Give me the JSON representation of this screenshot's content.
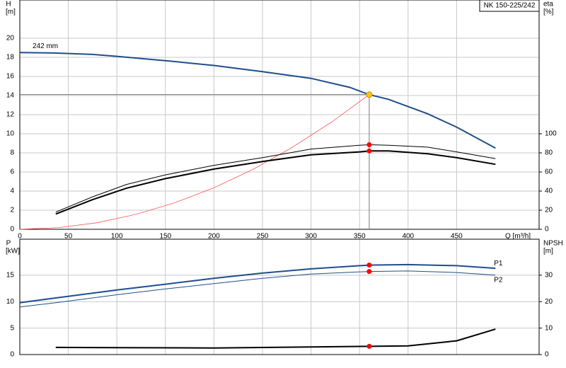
{
  "chart_data": [
    {
      "type": "line",
      "title": "NK 150-225/242",
      "ylabel": [
        "H",
        "[m]"
      ],
      "y2label": [
        "eta",
        "[%]"
      ],
      "xlabel": "Q [m³/h]",
      "xlim": [
        0,
        535
      ],
      "xticks": [
        0,
        50,
        100,
        150,
        200,
        250,
        300,
        350,
        400,
        450
      ],
      "show_xtick_labels": true,
      "ylim": [
        0,
        24
      ],
      "yticks": [
        0,
        2,
        4,
        6,
        8,
        10,
        12,
        14,
        16,
        18,
        20
      ],
      "y2lim": [
        0,
        240
      ],
      "y2ticks": [
        0,
        20,
        40,
        60,
        80,
        100
      ],
      "grid": true,
      "guides": true,
      "series_label_at": "start",
      "series": [
        {
          "name": "242 mm",
          "color": "#1f4e8c",
          "weight": "bold",
          "axis": "y",
          "x": [
            0,
            35,
            75,
            100,
            150,
            200,
            250,
            300,
            340,
            360,
            380,
            420,
            450,
            490
          ],
          "values": [
            18.5,
            18.45,
            18.3,
            18.1,
            17.65,
            17.15,
            16.5,
            15.8,
            14.85,
            14.1,
            13.6,
            12.1,
            10.7,
            8.5
          ]
        },
        {
          "color": "#ff3b3b",
          "weight": "hair",
          "axis": "y",
          "x": [
            0,
            40,
            80,
            120,
            160,
            200,
            240,
            280,
            320,
            360
          ],
          "values": [
            0,
            0.17,
            0.7,
            1.57,
            2.79,
            4.35,
            6.27,
            8.53,
            11.14,
            14.1
          ]
        },
        {
          "color": "#000000",
          "weight": "normal",
          "axis": "y2",
          "x": [
            37,
            75,
            110,
            150,
            200,
            250,
            300,
            350,
            360,
            380,
            420,
            450,
            490
          ],
          "values": [
            18,
            34,
            47,
            57,
            67,
            75,
            84,
            88,
            88.5,
            88,
            86,
            81,
            74
          ]
        },
        {
          "color": "#000000",
          "weight": "bold",
          "axis": "y2",
          "x": [
            37,
            75,
            110,
            150,
            200,
            250,
            300,
            350,
            360,
            380,
            420,
            450,
            490
          ],
          "values": [
            16,
            31,
            43,
            53,
            63,
            71,
            78,
            81,
            82,
            82,
            79,
            75,
            68
          ]
        }
      ],
      "markers": [
        {
          "x": 360,
          "y": 14.1,
          "axis": "y",
          "color": "#f5c518"
        },
        {
          "x": 360,
          "y": 88.5,
          "axis": "y2",
          "color": "#ff0000"
        },
        {
          "x": 360,
          "y": 82,
          "axis": "y2",
          "color": "#ff0000"
        }
      ]
    },
    {
      "type": "line",
      "ylabel": [
        "P",
        "[kW]"
      ],
      "y2label": [
        "NPSH",
        "[m]"
      ],
      "xlim": [
        0,
        535
      ],
      "xticks": [
        0,
        50,
        100,
        150,
        200,
        250,
        300,
        350,
        400,
        450
      ],
      "show_xtick_labels": false,
      "ylim": [
        0,
        21.8
      ],
      "yticks": [
        0,
        5,
        10,
        15
      ],
      "y2lim": [
        0,
        43.6
      ],
      "y2ticks": [
        0,
        10,
        20,
        30
      ],
      "grid": true,
      "guides": false,
      "series_label_at": "end",
      "series": [
        {
          "name": "P1",
          "color": "#1f4e8c",
          "weight": "bold",
          "axis": "y",
          "x": [
            0,
            37,
            100,
            150,
            200,
            250,
            300,
            360,
            400,
            450,
            490
          ],
          "values": [
            9.8,
            10.7,
            12.2,
            13.3,
            14.4,
            15.4,
            16.2,
            16.9,
            17.0,
            16.8,
            16.3
          ]
        },
        {
          "name": "P2",
          "color": "#1f4e8c",
          "weight": "normal",
          "axis": "y",
          "x": [
            0,
            37,
            100,
            150,
            200,
            250,
            300,
            360,
            400,
            450,
            490
          ],
          "values": [
            9.0,
            9.8,
            11.3,
            12.4,
            13.4,
            14.4,
            15.2,
            15.7,
            15.8,
            15.5,
            15.0
          ]
        },
        {
          "color": "#000000",
          "weight": "bold",
          "axis": "y2",
          "x": [
            37,
            100,
            200,
            300,
            360,
            400,
            450,
            490
          ],
          "values": [
            2.7,
            2.6,
            2.5,
            2.9,
            3.1,
            3.3,
            5.2,
            9.6
          ]
        }
      ],
      "markers": [
        {
          "x": 360,
          "y": 16.9,
          "axis": "y",
          "color": "#ff0000"
        },
        {
          "x": 360,
          "y": 15.7,
          "axis": "y",
          "color": "#ff0000"
        },
        {
          "x": 360,
          "y": 3.1,
          "axis": "y2",
          "color": "#ff0000"
        }
      ]
    }
  ]
}
